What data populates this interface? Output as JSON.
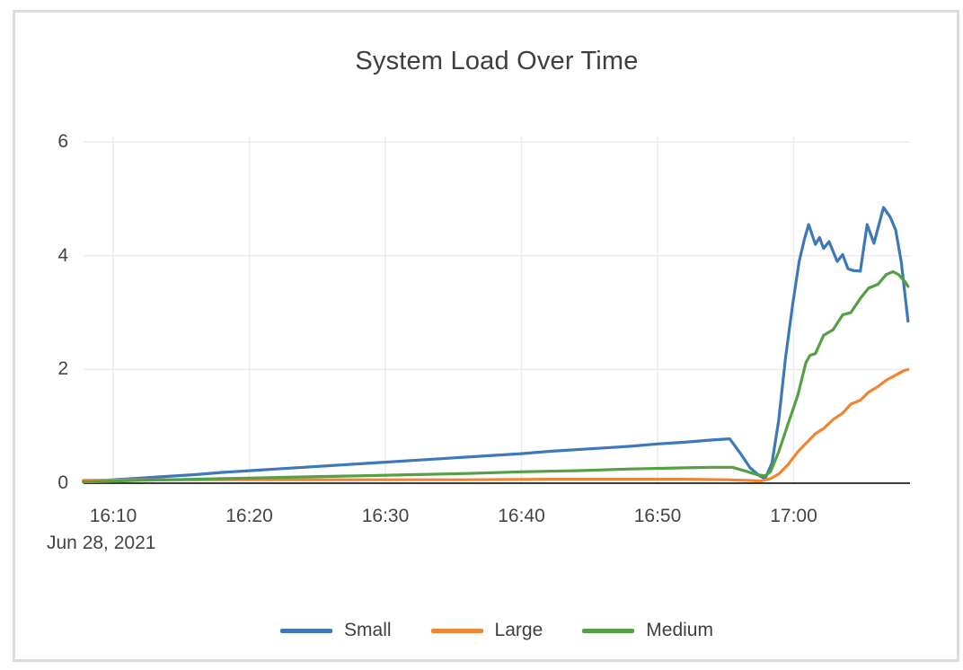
{
  "page": {
    "background_color": "#ffffff",
    "card_border_color": "#dcdcdc"
  },
  "chart_data": {
    "type": "line",
    "title": "System Load Over Time",
    "date_label": "Jun 28, 2021",
    "grid": true,
    "legend_position": "bottom-center",
    "colors": {
      "grid_line": "#ececec",
      "axis_line": "#3c3c3c",
      "tick_text": "#444444",
      "title_text": "#3f3f3f"
    },
    "x_axis": {
      "unit": "minutes-after-16:00",
      "range": [
        7.8,
        68.4
      ],
      "ticks": [
        {
          "t": 10,
          "label": "16:10"
        },
        {
          "t": 20,
          "label": "16:20"
        },
        {
          "t": 30,
          "label": "16:30"
        },
        {
          "t": 40,
          "label": "16:40"
        },
        {
          "t": 50,
          "label": "16:50"
        },
        {
          "t": 60,
          "label": "17:00"
        }
      ]
    },
    "y_axis": {
      "range": [
        0,
        6.1
      ],
      "ticks": [
        0,
        2,
        4,
        6
      ]
    },
    "series": [
      {
        "name": "Small",
        "color": "#3d79b8",
        "points": [
          [
            7.8,
            0.03
          ],
          [
            10,
            0.06
          ],
          [
            12,
            0.09
          ],
          [
            14,
            0.12
          ],
          [
            16,
            0.15
          ],
          [
            18,
            0.19
          ],
          [
            20,
            0.22
          ],
          [
            22,
            0.25
          ],
          [
            24,
            0.28
          ],
          [
            26,
            0.31
          ],
          [
            28,
            0.34
          ],
          [
            30,
            0.37
          ],
          [
            32,
            0.4
          ],
          [
            34,
            0.43
          ],
          [
            36,
            0.46
          ],
          [
            38,
            0.49
          ],
          [
            40,
            0.52
          ],
          [
            42,
            0.56
          ],
          [
            44,
            0.59
          ],
          [
            46,
            0.62
          ],
          [
            48,
            0.65
          ],
          [
            50,
            0.69
          ],
          [
            52,
            0.72
          ],
          [
            54,
            0.76
          ],
          [
            55.3,
            0.78
          ],
          [
            56.1,
            0.52
          ],
          [
            56.8,
            0.27
          ],
          [
            57.5,
            0.13
          ],
          [
            57.9,
            0.08
          ],
          [
            58.4,
            0.35
          ],
          [
            58.9,
            1.1
          ],
          [
            59.4,
            2.2
          ],
          [
            59.9,
            3.1
          ],
          [
            60.4,
            3.9
          ],
          [
            60.8,
            4.3
          ],
          [
            61.1,
            4.55
          ],
          [
            61.6,
            4.2
          ],
          [
            61.9,
            4.32
          ],
          [
            62.2,
            4.13
          ],
          [
            62.6,
            4.25
          ],
          [
            63.2,
            3.9
          ],
          [
            63.6,
            4.02
          ],
          [
            64.0,
            3.77
          ],
          [
            64.4,
            3.74
          ],
          [
            64.9,
            3.73
          ],
          [
            65.4,
            4.55
          ],
          [
            65.9,
            4.22
          ],
          [
            66.6,
            4.85
          ],
          [
            67.1,
            4.68
          ],
          [
            67.5,
            4.45
          ],
          [
            67.9,
            3.9
          ],
          [
            68.4,
            2.85
          ]
        ]
      },
      {
        "name": "Large",
        "color": "#ef8636",
        "points": [
          [
            7.8,
            0.05
          ],
          [
            12,
            0.06
          ],
          [
            18,
            0.06
          ],
          [
            24,
            0.06
          ],
          [
            30,
            0.06
          ],
          [
            36,
            0.06
          ],
          [
            42,
            0.07
          ],
          [
            48,
            0.07
          ],
          [
            52,
            0.07
          ],
          [
            55,
            0.06
          ],
          [
            56.5,
            0.05
          ],
          [
            57.6,
            0.04
          ],
          [
            58.3,
            0.08
          ],
          [
            58.9,
            0.16
          ],
          [
            59.6,
            0.33
          ],
          [
            60.3,
            0.55
          ],
          [
            60.9,
            0.7
          ],
          [
            61.6,
            0.87
          ],
          [
            62.2,
            0.96
          ],
          [
            62.9,
            1.12
          ],
          [
            63.6,
            1.23
          ],
          [
            64.2,
            1.39
          ],
          [
            64.9,
            1.46
          ],
          [
            65.5,
            1.6
          ],
          [
            66.2,
            1.7
          ],
          [
            66.8,
            1.81
          ],
          [
            67.5,
            1.9
          ],
          [
            68.1,
            1.98
          ],
          [
            68.4,
            2.0
          ]
        ]
      },
      {
        "name": "Medium",
        "color": "#55a044",
        "points": [
          [
            7.8,
            0.02
          ],
          [
            12,
            0.05
          ],
          [
            16,
            0.07
          ],
          [
            20,
            0.09
          ],
          [
            24,
            0.11
          ],
          [
            28,
            0.13
          ],
          [
            32,
            0.15
          ],
          [
            36,
            0.17
          ],
          [
            40,
            0.2
          ],
          [
            44,
            0.22
          ],
          [
            48,
            0.25
          ],
          [
            52,
            0.27
          ],
          [
            54,
            0.28
          ],
          [
            55.5,
            0.28
          ],
          [
            56.5,
            0.21
          ],
          [
            57.3,
            0.15
          ],
          [
            57.9,
            0.13
          ],
          [
            58.3,
            0.2
          ],
          [
            58.9,
            0.55
          ],
          [
            59.6,
            1.05
          ],
          [
            60.3,
            1.54
          ],
          [
            60.9,
            2.12
          ],
          [
            61.2,
            2.25
          ],
          [
            61.6,
            2.28
          ],
          [
            62.2,
            2.6
          ],
          [
            62.9,
            2.7
          ],
          [
            63.6,
            2.96
          ],
          [
            64.2,
            3.0
          ],
          [
            64.9,
            3.25
          ],
          [
            65.5,
            3.43
          ],
          [
            66.2,
            3.5
          ],
          [
            66.8,
            3.67
          ],
          [
            67.3,
            3.72
          ],
          [
            67.7,
            3.67
          ],
          [
            68.2,
            3.54
          ],
          [
            68.4,
            3.46
          ]
        ]
      }
    ]
  }
}
